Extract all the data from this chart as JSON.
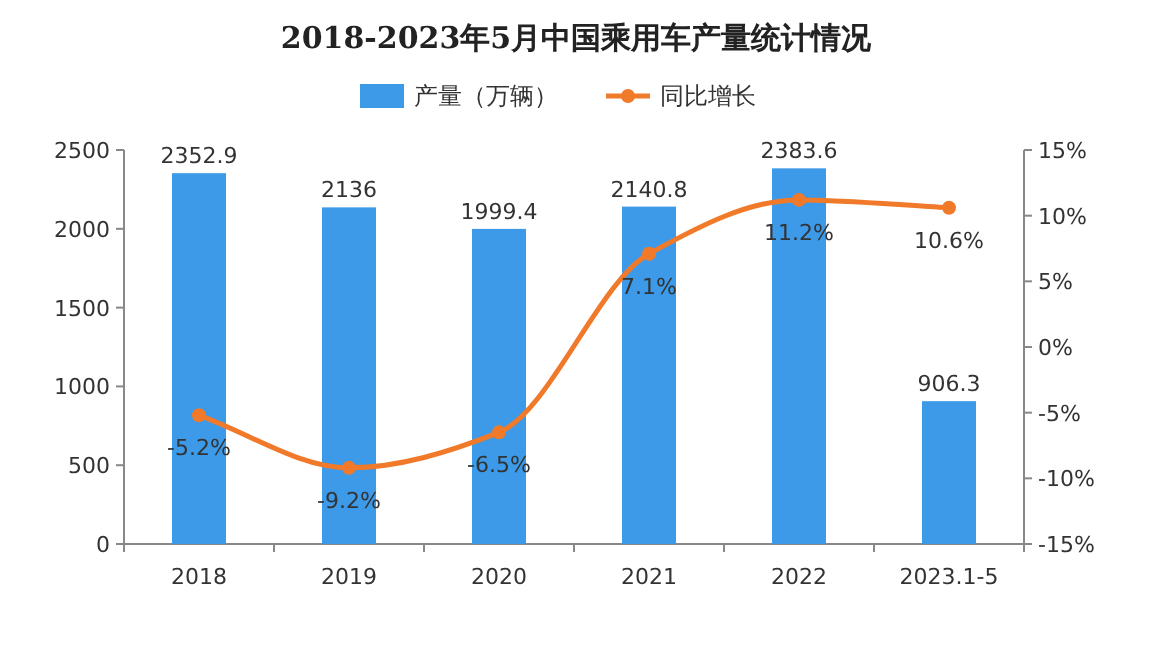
{
  "chart_data": {
    "type": "bar",
    "title": "2018-2023年5月中国乘用车产量统计情况",
    "categories": [
      "2018",
      "2019",
      "2020",
      "2021",
      "2022",
      "2023.1-5"
    ],
    "series": [
      {
        "name": "产量（万辆）",
        "color": "#3c9ae8",
        "values": [
          2352.9,
          2136,
          1999.4,
          2140.8,
          2383.6,
          906.3
        ],
        "value_labels": [
          "2352.9",
          "2136",
          "1999.4",
          "2140.8",
          "2383.6",
          "906.3"
        ]
      },
      {
        "name": "同比增长",
        "type": "line",
        "axis": "y2",
        "color": "#f07a2a",
        "marker": "circle",
        "values": [
          -5.2,
          -9.2,
          -6.5,
          7.1,
          11.2,
          10.6
        ],
        "value_labels": [
          "-5.2%",
          "-9.2%",
          "-6.5%",
          "7.1%",
          "11.2%",
          "10.6%"
        ]
      }
    ],
    "ylim": [
      0,
      2500
    ],
    "yticks": [
      0,
      500,
      1000,
      1500,
      2000,
      2500
    ],
    "y2lim": [
      -15,
      15
    ],
    "y2ticks": [
      {
        "value": -15,
        "label": "-15%"
      },
      {
        "value": -10,
        "label": "-10%"
      },
      {
        "value": -5,
        "label": "-5%"
      },
      {
        "value": 0,
        "label": "0%"
      },
      {
        "value": 5,
        "label": "5%"
      },
      {
        "value": 10,
        "label": "10%"
      },
      {
        "value": 15,
        "label": "15%"
      }
    ],
    "legend": "top",
    "grid": false
  }
}
